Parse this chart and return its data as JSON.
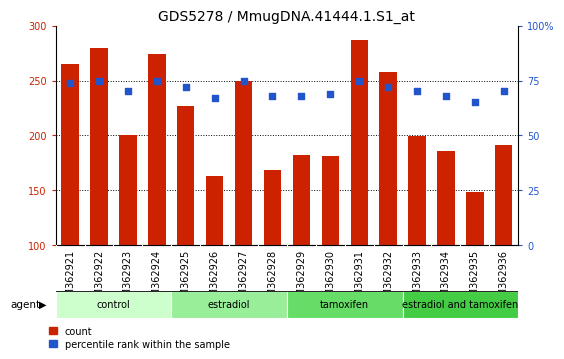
{
  "title": "GDS5278 / MmugDNA.41444.1.S1_at",
  "categories": [
    "GSM362921",
    "GSM362922",
    "GSM362923",
    "GSM362924",
    "GSM362925",
    "GSM362926",
    "GSM362927",
    "GSM362928",
    "GSM362929",
    "GSM362930",
    "GSM362931",
    "GSM362932",
    "GSM362933",
    "GSM362934",
    "GSM362935",
    "GSM362936"
  ],
  "bar_values": [
    265,
    280,
    200,
    274,
    227,
    163,
    250,
    168,
    182,
    181,
    287,
    258,
    199,
    186,
    148,
    191
  ],
  "dot_values": [
    74,
    75,
    70,
    75,
    72,
    67,
    75,
    68,
    68,
    69,
    75,
    72,
    70,
    68,
    65,
    70
  ],
  "bar_color": "#cc2200",
  "dot_color": "#2255cc",
  "ylim_left": [
    100,
    300
  ],
  "ylim_right": [
    0,
    100
  ],
  "yticks_left": [
    100,
    150,
    200,
    250,
    300
  ],
  "yticks_right": [
    0,
    25,
    50,
    75,
    100
  ],
  "groups": [
    {
      "label": "control",
      "start": 0,
      "end": 4,
      "color": "#ccffcc"
    },
    {
      "label": "estradiol",
      "start": 4,
      "end": 8,
      "color": "#99ee99"
    },
    {
      "label": "tamoxifen",
      "start": 8,
      "end": 12,
      "color": "#66dd66"
    },
    {
      "label": "estradiol and tamoxifen",
      "start": 12,
      "end": 16,
      "color": "#44cc44"
    }
  ],
  "legend_count_label": "count",
  "legend_pct_label": "percentile rank within the sample",
  "agent_label": "agent",
  "bg_color": "#ffffff",
  "plot_bg": "#ffffff",
  "xticklabel_bg": "#cccccc",
  "title_fontsize": 10,
  "tick_fontsize": 7,
  "group_fontsize": 7,
  "legend_fontsize": 7
}
